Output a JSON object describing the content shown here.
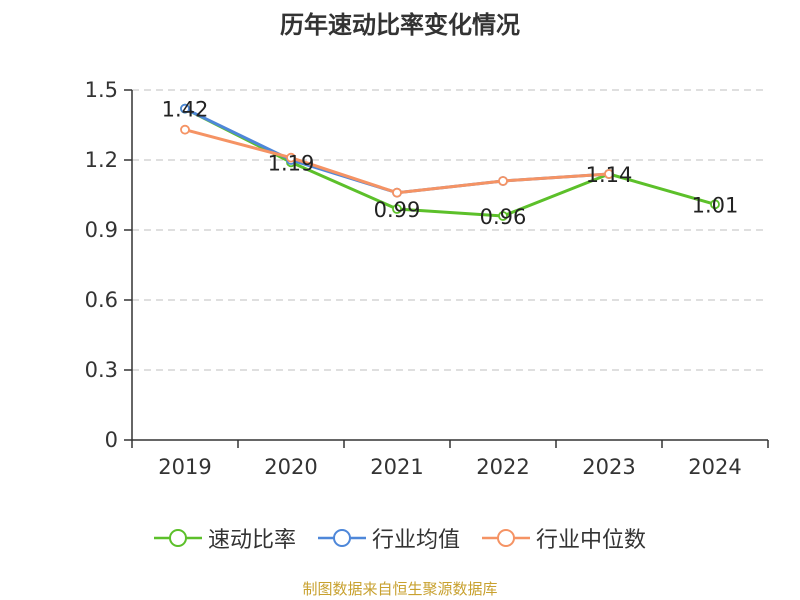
{
  "title": "历年速动比率变化情况",
  "source": "制图数据来自恒生聚源数据库",
  "colors": {
    "series_0": "#5cc02a",
    "series_1": "#4e87d9",
    "series_2": "#f59364",
    "grid": "#cccccc",
    "axis": "#333333"
  },
  "chart_data": {
    "type": "line",
    "title": "历年速动比率变化情况",
    "xlabel": "",
    "ylabel": "",
    "categories": [
      "2019",
      "2020",
      "2021",
      "2022",
      "2023",
      "2024"
    ],
    "y_ticks": [
      "0",
      "0.3",
      "0.6",
      "0.9",
      "1.2",
      "1.5"
    ],
    "ylim": [
      0,
      1.5
    ],
    "grid": true,
    "legend_position": "bottom",
    "series": [
      {
        "name": "速动比率",
        "values": [
          1.42,
          1.19,
          0.99,
          0.96,
          1.14,
          1.01
        ],
        "labels": [
          "1.42",
          "1.19",
          "0.99",
          "0.96",
          "1.14",
          "1.01"
        ]
      },
      {
        "name": "行业均值",
        "values": [
          1.42,
          1.2,
          1.06,
          1.11,
          1.14,
          null
        ]
      },
      {
        "name": "行业中位数",
        "values": [
          1.33,
          1.21,
          1.06,
          1.11,
          1.14,
          null
        ]
      }
    ]
  }
}
